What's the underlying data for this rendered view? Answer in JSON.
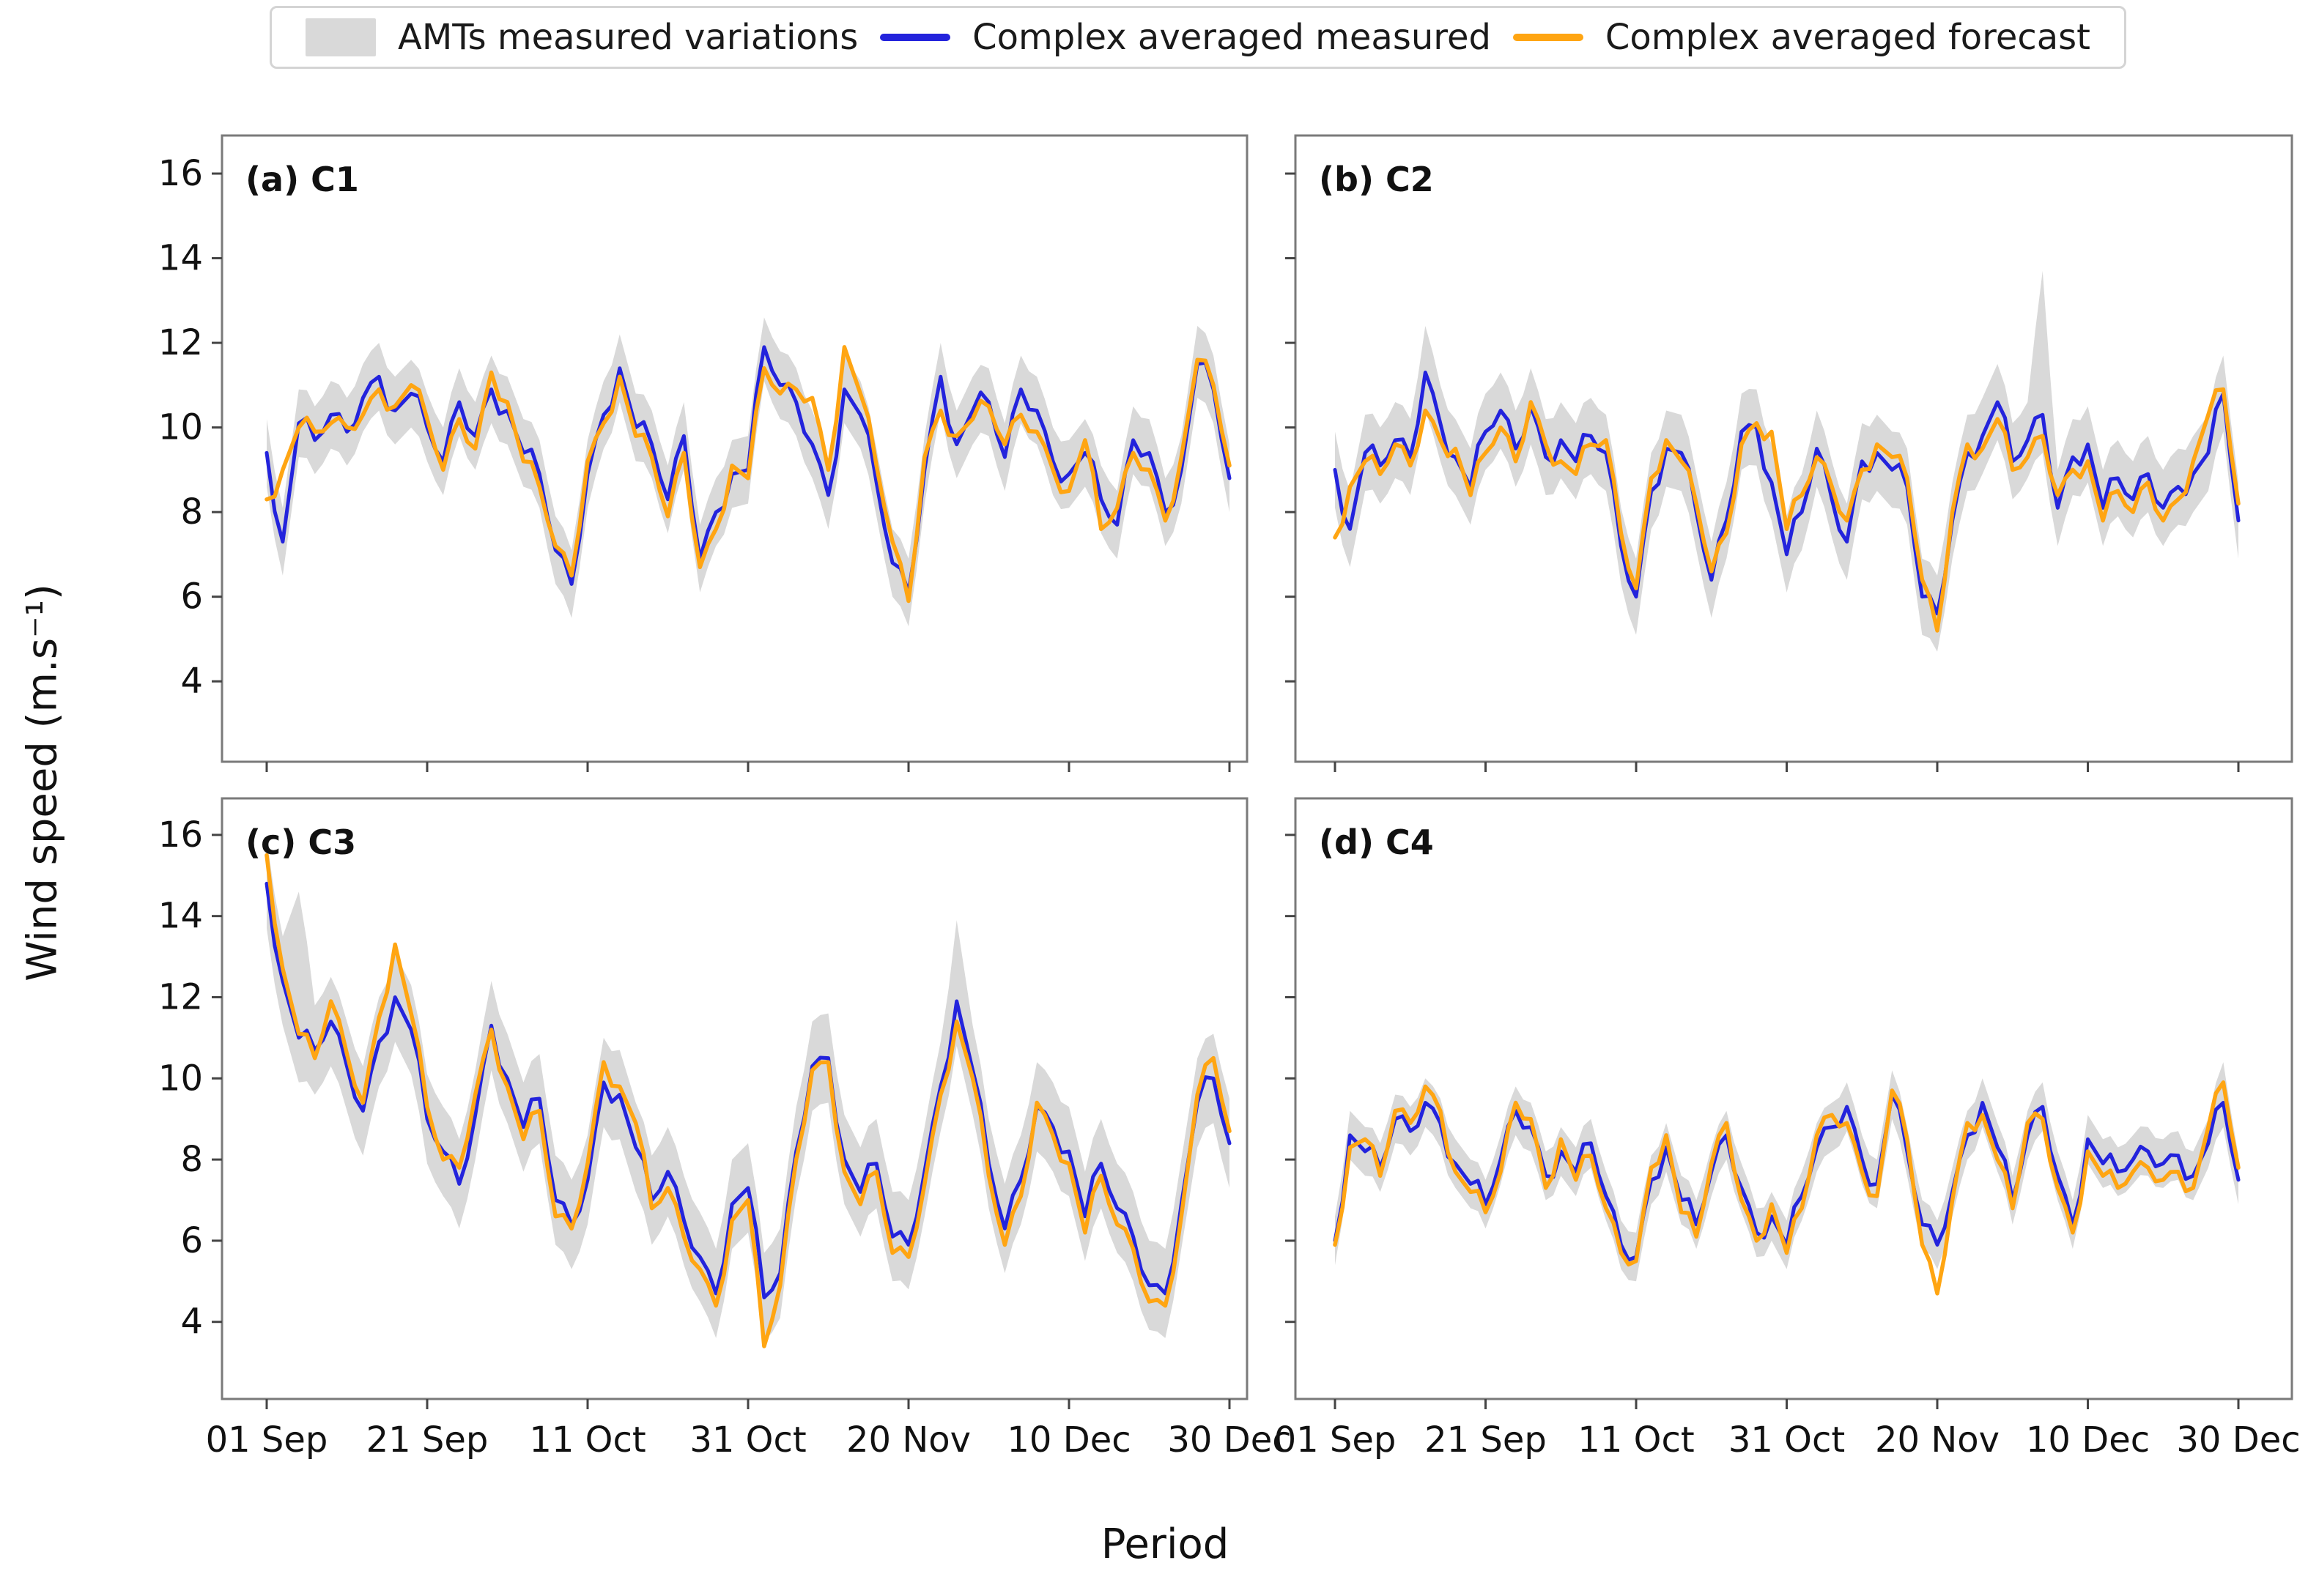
{
  "colors": {
    "band": "#d9d9d9",
    "measured": "#2323dc",
    "forecast": "#ffa512",
    "spine": "#7a7a7a",
    "tick_text": "#111111"
  },
  "legend": {
    "items": [
      {
        "label": "AMTs measured variations",
        "swatch": "band",
        "type": "patch"
      },
      {
        "label": "Complex averaged measured",
        "swatch": "measured",
        "type": "line"
      },
      {
        "label": "Complex averaged forecast",
        "swatch": "forecast",
        "type": "line"
      }
    ]
  },
  "axes": {
    "xlabel": "Period",
    "ylabel": "Wind speed (m.s⁻¹)",
    "yticks": [
      16,
      14,
      12,
      10,
      8,
      6,
      4
    ],
    "xtick_days": [
      0,
      20,
      40,
      60,
      80,
      100,
      120
    ],
    "xticklabels": [
      "01 Sep",
      "21 Sep",
      "11 Oct",
      "31 Oct",
      "20 Nov",
      "10 Dec",
      "30 Dec"
    ],
    "ylim": [
      2.1,
      16.9
    ]
  },
  "chart_data": {
    "type": "line",
    "x_units": "days since 01 Sep",
    "x_days": [
      0,
      2,
      4,
      6,
      8,
      10,
      12,
      14,
      16,
      18,
      20,
      22,
      24,
      26,
      28,
      30,
      32,
      34,
      36,
      38,
      40,
      42,
      44,
      46,
      48,
      50,
      52,
      54,
      56,
      58,
      60,
      62,
      64,
      66,
      68,
      70,
      72,
      74,
      76,
      78,
      80,
      82,
      84,
      86,
      88,
      90,
      92,
      94,
      96,
      98,
      100,
      102,
      104,
      106,
      108,
      110,
      112,
      114,
      116,
      118,
      120
    ],
    "band_series_name": "AMTs measured variations",
    "measured_series_name": "Complex averaged measured",
    "forecast_series_name": "Complex averaged forecast",
    "panels": [
      {
        "id": "a",
        "title": "(a) C1",
        "site": "C1",
        "band_halfwidth": 0.8,
        "band_spikes": [
          {
            "day": 62,
            "value": 12.6
          },
          {
            "day": 116,
            "value": 12.4
          }
        ],
        "measured": [
          9.4,
          7.3,
          10.1,
          9.7,
          10.3,
          9.9,
          10.7,
          11.2,
          10.4,
          10.8,
          10.0,
          9.2,
          10.6,
          9.8,
          10.9,
          10.4,
          9.4,
          8.9,
          7.1,
          6.3,
          8.9,
          10.3,
          11.4,
          10.0,
          9.6,
          8.3,
          9.8,
          6.9,
          8.0,
          8.9,
          9.0,
          11.9,
          11.0,
          10.6,
          9.6,
          8.4,
          10.9,
          10.3,
          8.7,
          6.8,
          6.1,
          9.0,
          11.2,
          9.6,
          10.4,
          10.6,
          9.3,
          10.9,
          10.4,
          9.2,
          8.9,
          9.4,
          8.3,
          7.7,
          9.7,
          9.4,
          8.0,
          9.0,
          11.5,
          10.9,
          8.8
        ],
        "forecast": [
          8.3,
          9.0,
          10.0,
          9.9,
          10.1,
          10.0,
          10.3,
          10.9,
          10.5,
          11.0,
          10.2,
          9.0,
          10.2,
          9.5,
          11.3,
          10.6,
          9.2,
          8.6,
          7.2,
          6.5,
          9.2,
          10.1,
          11.2,
          9.8,
          9.3,
          7.9,
          9.4,
          6.7,
          7.6,
          9.1,
          8.8,
          11.4,
          10.8,
          10.9,
          10.7,
          9.0,
          11.9,
          10.8,
          9.1,
          7.3,
          5.9,
          9.3,
          10.4,
          9.8,
          10.2,
          10.5,
          9.6,
          10.3,
          9.9,
          9.0,
          8.5,
          9.7,
          7.6,
          8.1,
          9.4,
          9.0,
          7.8,
          9.3,
          11.6,
          11.0,
          9.1
        ]
      },
      {
        "id": "b",
        "title": "(b) C2",
        "site": "C2",
        "band_halfwidth": 0.9,
        "band_spikes": [
          {
            "day": 12,
            "value": 12.4
          },
          {
            "day": 94,
            "value": 13.7
          }
        ],
        "measured": [
          9.0,
          7.6,
          9.4,
          9.1,
          9.7,
          9.3,
          11.3,
          10.1,
          9.3,
          8.6,
          9.9,
          10.4,
          9.5,
          10.5,
          9.3,
          9.7,
          9.2,
          9.8,
          9.4,
          7.2,
          6.0,
          8.5,
          9.5,
          9.4,
          8.0,
          6.4,
          7.8,
          9.9,
          10.0,
          8.7,
          7.0,
          8.0,
          9.5,
          8.3,
          7.3,
          9.2,
          9.4,
          9.0,
          8.6,
          6.0,
          5.6,
          7.8,
          9.4,
          9.8,
          10.6,
          9.2,
          9.7,
          10.3,
          8.1,
          9.3,
          9.6,
          8.1,
          8.8,
          8.3,
          8.9,
          8.1,
          8.6,
          8.9,
          9.4,
          10.8,
          7.8
        ],
        "forecast": [
          7.4,
          8.6,
          9.2,
          8.9,
          9.6,
          9.1,
          10.4,
          9.7,
          9.5,
          8.4,
          9.4,
          10.0,
          9.2,
          10.6,
          9.6,
          9.2,
          8.9,
          9.6,
          9.7,
          7.5,
          6.2,
          8.8,
          9.7,
          9.2,
          8.2,
          6.6,
          7.5,
          9.6,
          10.1,
          9.9,
          7.6,
          8.4,
          9.3,
          8.6,
          7.8,
          9.0,
          9.6,
          9.3,
          8.8,
          6.4,
          5.2,
          8.0,
          9.6,
          9.5,
          10.2,
          9.0,
          9.3,
          9.8,
          8.4,
          9.0,
          9.2,
          7.8,
          8.5,
          8.0,
          8.7,
          7.8,
          8.3,
          9.2,
          10.3,
          10.9,
          8.2
        ]
      },
      {
        "id": "c",
        "title": "(c) C3",
        "site": "C3",
        "band_halfwidth": 1.1,
        "band_spikes": [
          {
            "day": 4,
            "value": 14.6
          },
          {
            "day": 86,
            "value": 13.9
          }
        ],
        "measured": [
          14.8,
          12.4,
          11.0,
          10.7,
          11.4,
          10.3,
          9.2,
          10.9,
          12.0,
          11.2,
          9.0,
          8.2,
          7.4,
          9.1,
          11.3,
          10.0,
          8.8,
          9.5,
          7.0,
          6.4,
          7.5,
          9.9,
          9.6,
          8.3,
          7.0,
          7.7,
          6.5,
          5.6,
          4.7,
          6.9,
          7.3,
          4.6,
          5.2,
          8.2,
          10.3,
          10.5,
          8.0,
          7.2,
          7.9,
          6.1,
          5.9,
          7.7,
          9.8,
          11.9,
          10.2,
          7.9,
          6.3,
          7.5,
          9.3,
          8.8,
          8.2,
          6.6,
          7.9,
          6.8,
          6.1,
          4.9,
          4.7,
          6.9,
          9.4,
          10.0,
          8.4
        ],
        "forecast": [
          15.5,
          12.7,
          11.1,
          10.5,
          11.9,
          10.6,
          9.4,
          11.5,
          13.3,
          11.6,
          9.3,
          8.0,
          7.8,
          9.6,
          11.2,
          9.8,
          8.5,
          9.2,
          6.6,
          6.3,
          7.9,
          10.4,
          9.8,
          8.9,
          6.8,
          7.3,
          6.1,
          5.3,
          4.4,
          6.5,
          7.0,
          3.4,
          4.9,
          8.0,
          10.2,
          10.4,
          7.7,
          6.9,
          7.7,
          5.7,
          5.6,
          7.4,
          9.6,
          11.4,
          10.0,
          7.6,
          5.9,
          7.1,
          9.4,
          8.6,
          7.9,
          6.2,
          7.6,
          6.4,
          5.8,
          4.5,
          4.4,
          6.6,
          9.6,
          10.5,
          8.7
        ]
      },
      {
        "id": "d",
        "title": "(d) C4",
        "site": "C4",
        "band_halfwidth": 0.6,
        "band_spikes": [
          {
            "day": 74,
            "value": 10.2
          },
          {
            "day": 118,
            "value": 10.4
          }
        ],
        "measured": [
          6.0,
          8.6,
          8.2,
          7.8,
          9.0,
          8.7,
          9.4,
          8.9,
          7.9,
          7.4,
          6.9,
          8.0,
          9.2,
          8.8,
          7.6,
          8.2,
          7.7,
          8.4,
          7.1,
          5.9,
          5.6,
          7.5,
          8.3,
          7.0,
          6.4,
          7.7,
          8.6,
          7.3,
          6.2,
          6.6,
          5.9,
          7.1,
          8.3,
          8.8,
          9.3,
          8.0,
          7.4,
          9.6,
          8.2,
          6.4,
          5.9,
          7.2,
          8.6,
          9.4,
          8.3,
          7.0,
          8.6,
          9.3,
          7.6,
          6.4,
          8.5,
          7.9,
          7.7,
          8.0,
          8.2,
          7.9,
          8.1,
          7.6,
          8.4,
          9.4,
          7.5
        ],
        "forecast": [
          5.9,
          8.3,
          8.5,
          7.6,
          9.2,
          8.9,
          9.8,
          9.2,
          7.7,
          7.2,
          6.7,
          7.7,
          9.4,
          9.0,
          7.3,
          8.5,
          7.5,
          8.1,
          6.8,
          5.7,
          5.5,
          7.8,
          8.6,
          6.7,
          6.1,
          7.9,
          8.9,
          7.0,
          6.0,
          6.9,
          5.7,
          6.8,
          8.6,
          9.1,
          8.9,
          7.7,
          7.1,
          9.7,
          8.5,
          5.9,
          4.7,
          7.0,
          8.9,
          9.1,
          8.0,
          6.8,
          8.9,
          9.0,
          7.3,
          6.2,
          8.2,
          7.6,
          7.3,
          7.7,
          7.8,
          7.5,
          7.7,
          7.3,
          8.8,
          9.9,
          7.8
        ]
      }
    ]
  }
}
